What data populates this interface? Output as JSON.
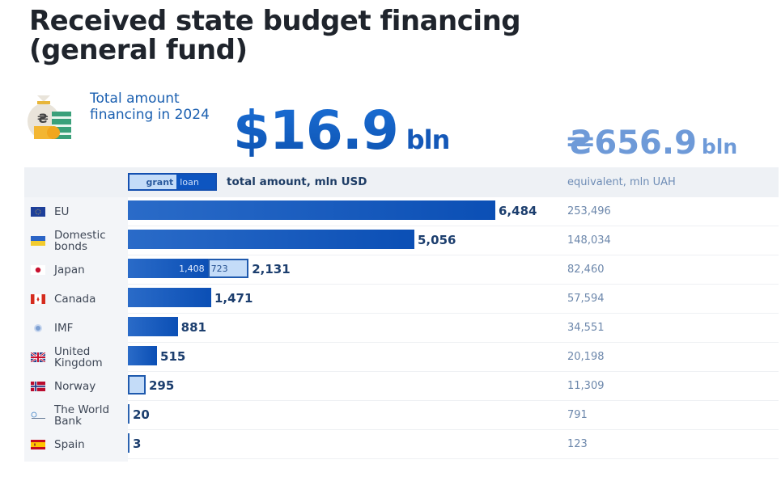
{
  "title": "Received state budget financing (general fund)",
  "summary": {
    "label": "Total amount financing in 2024",
    "icon": "money-bag-icon",
    "usd_value": "$16.9",
    "usd_unit": "bln",
    "uah_value": "₴656.9",
    "uah_unit": "bln"
  },
  "colors": {
    "loan": "#0b4fb5",
    "grant": "#c4dcf8",
    "accent": "#1560c4",
    "uah_text": "#6e9ad8"
  },
  "header": {
    "legend_grant": "grant",
    "legend_loan": "loan",
    "usd_column": "total amount, mln USD",
    "uah_column": "equivalent, mln UAH"
  },
  "chart_data": {
    "type": "bar",
    "title": "Received state budget financing (general fund)",
    "xlabel": "total amount, mln USD",
    "ylabel": "",
    "xlim": [
      0,
      6484
    ],
    "legend": [
      "grant",
      "loan"
    ],
    "categories": [
      "EU",
      "Domestic bonds",
      "Japan",
      "Canada",
      "IMF",
      "United Kingdom",
      "Norway",
      "The World Bank",
      "Spain"
    ],
    "rows": [
      {
        "label": "EU",
        "flag": "eu-flag-icon",
        "total": 6484,
        "total_label": "6,484",
        "loan": 6484,
        "grant": 0,
        "uah": "253,496"
      },
      {
        "label": "Domestic bonds",
        "flag": "ukraine-flag-icon",
        "total": 5056,
        "total_label": "5,056",
        "loan": 5056,
        "grant": 0,
        "uah": "148,034"
      },
      {
        "label": "Japan",
        "flag": "japan-flag-icon",
        "total": 2131,
        "total_label": "2,131",
        "loan": 1408,
        "grant": 723,
        "loan_label": "1,408",
        "grant_label": "723",
        "uah": "82,460"
      },
      {
        "label": "Canada",
        "flag": "canada-flag-icon",
        "total": 1471,
        "total_label": "1,471",
        "loan": 1471,
        "grant": 0,
        "uah": "57,594"
      },
      {
        "label": "IMF",
        "flag": "imf-logo-icon",
        "total": 881,
        "total_label": "881",
        "loan": 881,
        "grant": 0,
        "uah": "34,551"
      },
      {
        "label": "United Kingdom",
        "flag": "uk-flag-icon",
        "total": 515,
        "total_label": "515",
        "loan": 515,
        "grant": 0,
        "uah": "20,198"
      },
      {
        "label": "Norway",
        "flag": "norway-flag-icon",
        "total": 295,
        "total_label": "295",
        "loan": 0,
        "grant": 295,
        "uah": "11,309"
      },
      {
        "label": "The World Bank",
        "flag": "world-bank-logo-icon",
        "total": 20,
        "total_label": "20",
        "loan": 20,
        "grant": 0,
        "uah": "791"
      },
      {
        "label": "Spain",
        "flag": "spain-flag-icon",
        "total": 3,
        "total_label": "3",
        "loan": 3,
        "grant": 0,
        "uah": "123"
      }
    ],
    "rows_label_lines": [
      [
        "EU"
      ],
      [
        "Domestic",
        "bonds"
      ],
      [
        "Japan"
      ],
      [
        "Canada"
      ],
      [
        "IMF"
      ],
      [
        "United",
        "Kingdom"
      ],
      [
        "Norway"
      ],
      [
        "The World",
        "Bank"
      ],
      [
        "Spain"
      ]
    ]
  }
}
